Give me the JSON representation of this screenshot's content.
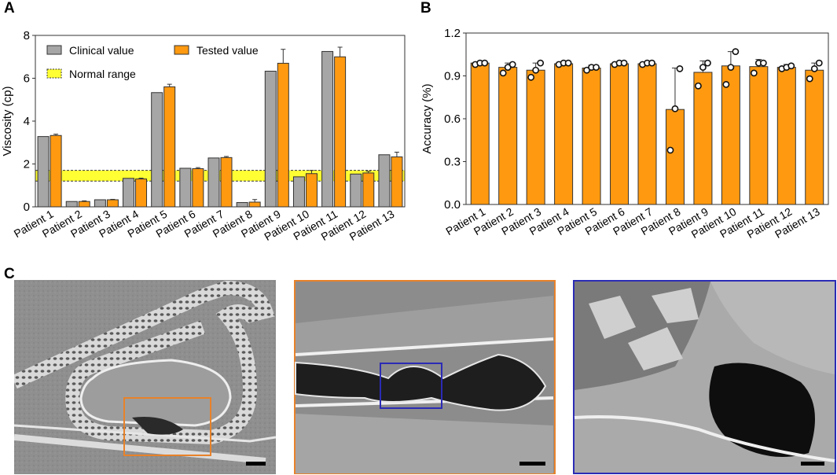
{
  "panels": {
    "a": {
      "letter": "A"
    },
    "b": {
      "letter": "B"
    },
    "c": {
      "letter": "C"
    }
  },
  "colors": {
    "clinical": "#a6a6a6",
    "tested": "#ff9a10",
    "normal_range": "#ffff33",
    "accuracy_bar": "#ff9a10",
    "frame_orange": "#e8822a",
    "frame_blue": "#2b2bb5"
  },
  "chart_data": [
    {
      "type": "bar",
      "panel": "A",
      "ylabel": "Viscosity (cp)",
      "ylim": [
        0,
        8
      ],
      "yticks": [
        0,
        2,
        4,
        6,
        8
      ],
      "categories": [
        "Patient 1",
        "Patient 2",
        "Patient 3",
        "Patient 4",
        "Patient 5",
        "Patient 6",
        "Patient 7",
        "Patient 8",
        "Patient 9",
        "Patient 10",
        "Patient 11",
        "Patient 12",
        "Patient 13"
      ],
      "series": [
        {
          "name": "Clinical value",
          "values": [
            3.28,
            0.25,
            0.33,
            1.33,
            5.33,
            1.8,
            2.28,
            0.2,
            6.33,
            1.4,
            7.25,
            1.53,
            2.43
          ]
        },
        {
          "name": "Tested value",
          "values": [
            3.33,
            0.25,
            0.33,
            1.3,
            5.6,
            1.78,
            2.3,
            0.22,
            6.7,
            1.55,
            7.0,
            1.58,
            2.33
          ],
          "errors": [
            0.06,
            0.03,
            0.02,
            0.04,
            0.12,
            0.05,
            0.05,
            0.12,
            0.65,
            0.15,
            0.45,
            0.08,
            0.22
          ]
        }
      ],
      "normal_range": {
        "label": "Normal range",
        "low": 1.2,
        "high": 1.7
      },
      "legend": "top-left"
    },
    {
      "type": "bar",
      "panel": "B",
      "ylabel": "Accuracy (%)",
      "ylim": [
        0,
        1.2
      ],
      "yticks": [
        "0.0",
        "0.3",
        "0.6",
        "0.9",
        "1.2"
      ],
      "categories": [
        "Patient 1",
        "Patient 2",
        "Patient 3",
        "Patient 4",
        "Patient 5",
        "Patient 6",
        "Patient 7",
        "Patient 8",
        "Patient 9",
        "Patient 10",
        "Patient 11",
        "Patient 12",
        "Patient 13"
      ],
      "values": [
        0.99,
        0.96,
        0.94,
        0.985,
        0.955,
        0.985,
        0.985,
        0.665,
        0.925,
        0.97,
        0.965,
        0.96,
        0.94
      ],
      "errors": [
        0.01,
        0.03,
        0.05,
        0.005,
        0.02,
        0.01,
        0.01,
        0.29,
        0.08,
        0.1,
        0.05,
        0.02,
        0.05
      ],
      "points": [
        [
          0.98,
          0.99,
          0.99
        ],
        [
          0.92,
          0.96,
          0.98
        ],
        [
          0.89,
          0.94,
          0.99
        ],
        [
          0.98,
          0.99,
          0.99
        ],
        [
          0.94,
          0.96,
          0.96
        ],
        [
          0.98,
          0.99,
          0.99
        ],
        [
          0.98,
          0.99,
          0.99
        ],
        [
          0.38,
          0.67,
          0.95
        ],
        [
          0.83,
          0.96,
          0.99
        ],
        [
          0.84,
          0.96,
          1.07
        ],
        [
          0.92,
          0.99,
          0.99
        ],
        [
          0.95,
          0.96,
          0.97
        ],
        [
          0.88,
          0.95,
          0.99
        ]
      ]
    }
  ]
}
